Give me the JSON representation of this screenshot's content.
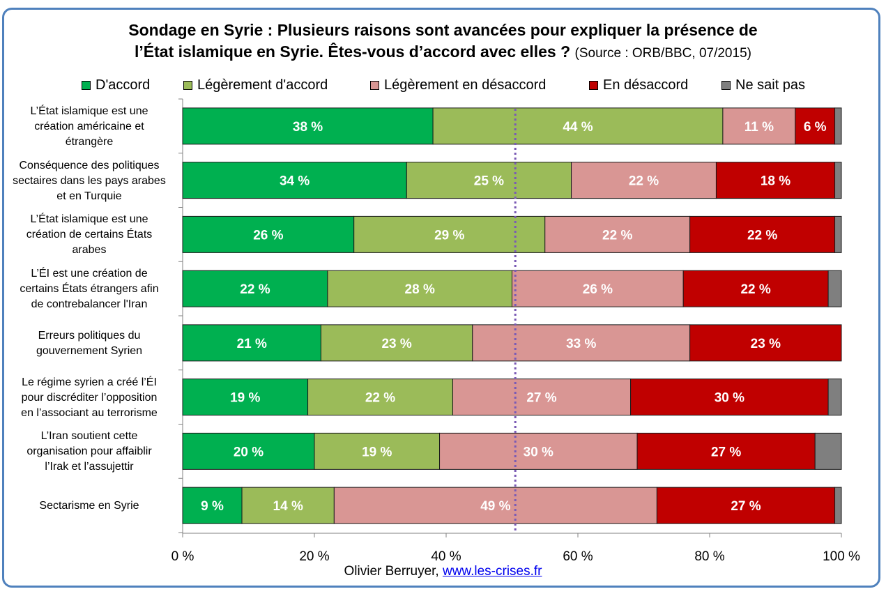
{
  "title_line1": "Sondage en Syrie : Plusieurs raisons sont avancées pour expliquer la présence de",
  "title_line2": "l’État islamique en Syrie. Êtes-vous d’accord avec elles ?",
  "source": "(Source : ORB/BBC, 07/2015)",
  "footer": {
    "author": "Olivier Berruyer,",
    "link": "www.les-crises.fr"
  },
  "chart_data": {
    "type": "bar",
    "orientation": "horizontal",
    "stacked": true,
    "xlim": [
      0,
      100
    ],
    "xticks": [
      "0 %",
      "20 %",
      "40 %",
      "60 %",
      "80 %",
      "100 %"
    ],
    "reference_line_x": 50.5,
    "legend_position": "top",
    "categories": [
      "L’État islamique est une création américaine et étrangère",
      "Conséquence des politiques sectaires dans les pays arabes et en Turquie",
      "L’État islamique est une création de certains États arabes",
      "L’ÉI est une création de certains États étrangers afin de contrebalancer l'Iran",
      "Erreurs politiques du gouvernement Syrien",
      "Le régime syrien a créé l’ÉI pour discréditer l’opposition en l’associant au terrorisme",
      "L’Iran soutient cette organisation pour affaiblir l’Irak et l’assujettir",
      "Sectarisme en Syrie"
    ],
    "category_lines": [
      [
        "L’État islamique est une",
        "création américaine et",
        "étrangère"
      ],
      [
        "Conséquence des politiques",
        "sectaires dans les pays arabes",
        "et en Turquie"
      ],
      [
        "L’État islamique est une",
        "création de certains États",
        "arabes"
      ],
      [
        "L’ÉI est une création de",
        "certains États étrangers afin",
        "de contrebalancer l'Iran"
      ],
      [
        "Erreurs politiques du",
        "gouvernement Syrien"
      ],
      [
        "Le régime syrien a créé l’ÉI",
        "pour discréditer l’opposition",
        "en l’associant au terrorisme"
      ],
      [
        "L’Iran soutient cette",
        "organisation pour affaiblir",
        "l’Irak et l’assujettir"
      ],
      [
        "Sectarisme en Syrie"
      ]
    ],
    "series": [
      {
        "name": "D'accord",
        "color": "#00b050",
        "values": [
          38,
          34,
          26,
          22,
          21,
          19,
          20,
          9
        ]
      },
      {
        "name": "Légèrement d'accord",
        "color": "#9bbb59",
        "values": [
          44,
          25,
          29,
          28,
          23,
          22,
          19,
          14
        ]
      },
      {
        "name": "Légèrement en désaccord",
        "color": "#d99694",
        "values": [
          11,
          22,
          22,
          26,
          33,
          27,
          30,
          49
        ]
      },
      {
        "name": "En désaccord",
        "color": "#c00000",
        "values": [
          6,
          18,
          22,
          22,
          23,
          30,
          27,
          27
        ]
      },
      {
        "name": "Ne sait pas",
        "color": "#7f7f7f",
        "values": [
          1,
          1,
          1,
          2,
          0,
          2,
          4,
          1
        ]
      }
    ],
    "labeled_series": [
      0,
      1,
      2,
      3
    ],
    "value_suffix": " %"
  }
}
